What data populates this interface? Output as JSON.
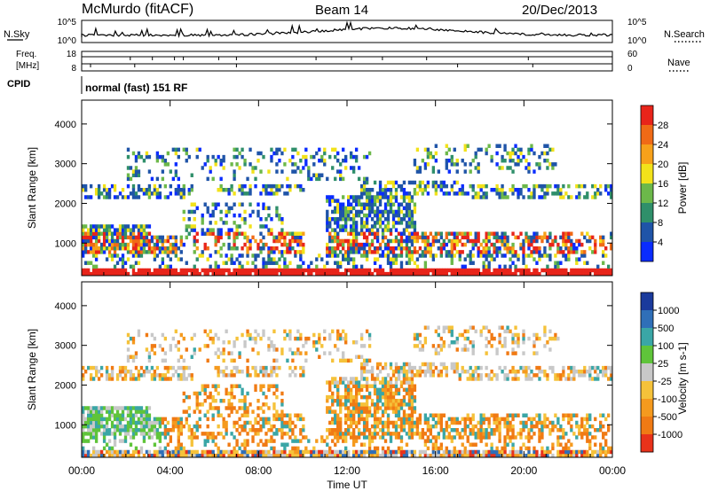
{
  "header": {
    "station": "McMurdo (fitACF)",
    "beam": "Beam 14",
    "date": "20/Dec/2013"
  },
  "noise_panel": {
    "left_label": "N.Sky",
    "right_label": "N.Search",
    "left_ticks": [
      "10^5",
      "10^0"
    ],
    "right_ticks": [
      "10^5",
      "10^0"
    ]
  },
  "freq_panel": {
    "left_label_1": "Freq.",
    "left_label_2": "[MHz]",
    "right_label": "Nave",
    "left_ticks": [
      "18",
      "8"
    ],
    "right_ticks": [
      "60",
      "0"
    ]
  },
  "cpid_panel": {
    "label": "CPID",
    "mode_text": "normal (fast) 151 RF"
  },
  "chart_data": [
    {
      "type": "heatmap",
      "name": "power",
      "ylabel": "Slant Range [km]",
      "yticks": [
        1000,
        2000,
        3000,
        4000
      ],
      "ylim": [
        180,
        4600
      ],
      "xlim_hours": [
        0,
        24
      ],
      "colorbar": {
        "label": "Power [dB]",
        "ticks": [
          "28",
          "24",
          "20",
          "16",
          "12",
          "8",
          "4"
        ],
        "colors": [
          "#0a2cff",
          "#1f54a8",
          "#2f8f6a",
          "#6cb84a",
          "#f2e21a",
          "#f7a11a",
          "#f06a16",
          "#e8241a"
        ]
      }
    },
    {
      "type": "heatmap",
      "name": "velocity",
      "ylabel": "Slant Range [km]",
      "yticks": [
        1000,
        2000,
        3000,
        4000
      ],
      "ylim": [
        180,
        4600
      ],
      "xlim_hours": [
        0,
        24
      ],
      "colorbar": {
        "label": "Velocity [m s-1]",
        "ticks": [
          "1000",
          "500",
          "100",
          "25",
          "-25",
          "-100",
          "-500",
          "-1000"
        ],
        "colors": [
          "#1a3a9c",
          "#2f6fb8",
          "#3aa6a6",
          "#5fc43a",
          "#c8c8c8",
          "#f5c23a",
          "#f59a1e",
          "#f07a14",
          "#e8321a"
        ]
      }
    }
  ],
  "xaxis": {
    "title": "Time UT",
    "ticks": [
      "00:00",
      "04:00",
      "08:00",
      "12:00",
      "16:00",
      "20:00",
      "00:00"
    ]
  }
}
